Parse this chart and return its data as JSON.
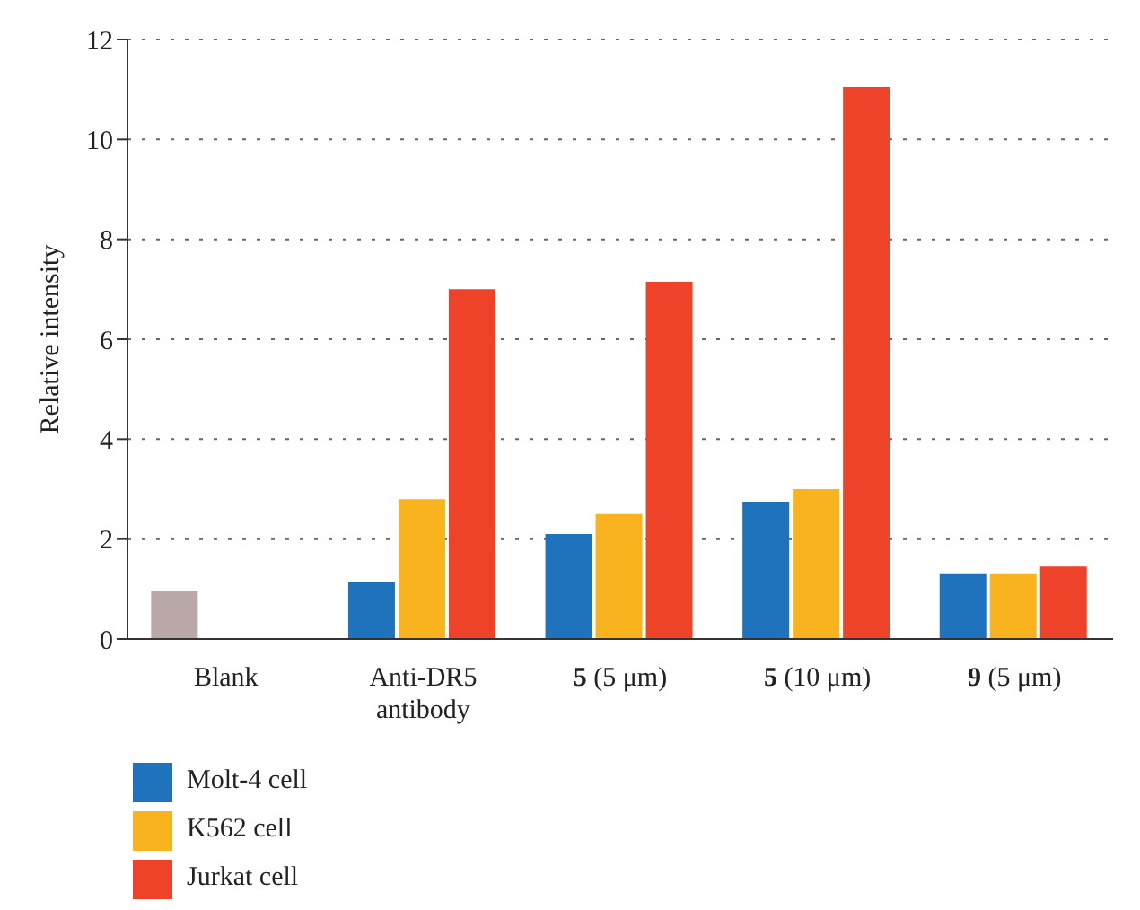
{
  "chart_data": {
    "type": "bar",
    "ylabel": "Relative intensity",
    "categories": [
      "Blank",
      "Anti-DR5 antibody",
      "5 (5 μm)",
      "5 (10 μm)",
      "9 (5 μm)"
    ],
    "series": [
      {
        "name": "Molt-4 cell",
        "color": "#1f73bd",
        "colors": [
          "#bba8a8",
          "#1f73bd",
          "#1f73bd",
          "#1f73bd",
          "#1f73bd"
        ],
        "values": [
          0.95,
          1.15,
          2.1,
          2.75,
          1.3
        ]
      },
      {
        "name": "K562 cell",
        "color": "#f8b31f",
        "values": [
          null,
          2.8,
          2.5,
          3.0,
          1.3
        ]
      },
      {
        "name": "Jurkat cell",
        "color": "#ee4328",
        "values": [
          null,
          7.0,
          7.15,
          11.05,
          1.45
        ]
      }
    ],
    "ylim": [
      0,
      12
    ],
    "yticks": [
      0,
      2,
      4,
      6,
      8,
      10,
      12
    ],
    "grid": "y",
    "legend": "bottom left"
  }
}
